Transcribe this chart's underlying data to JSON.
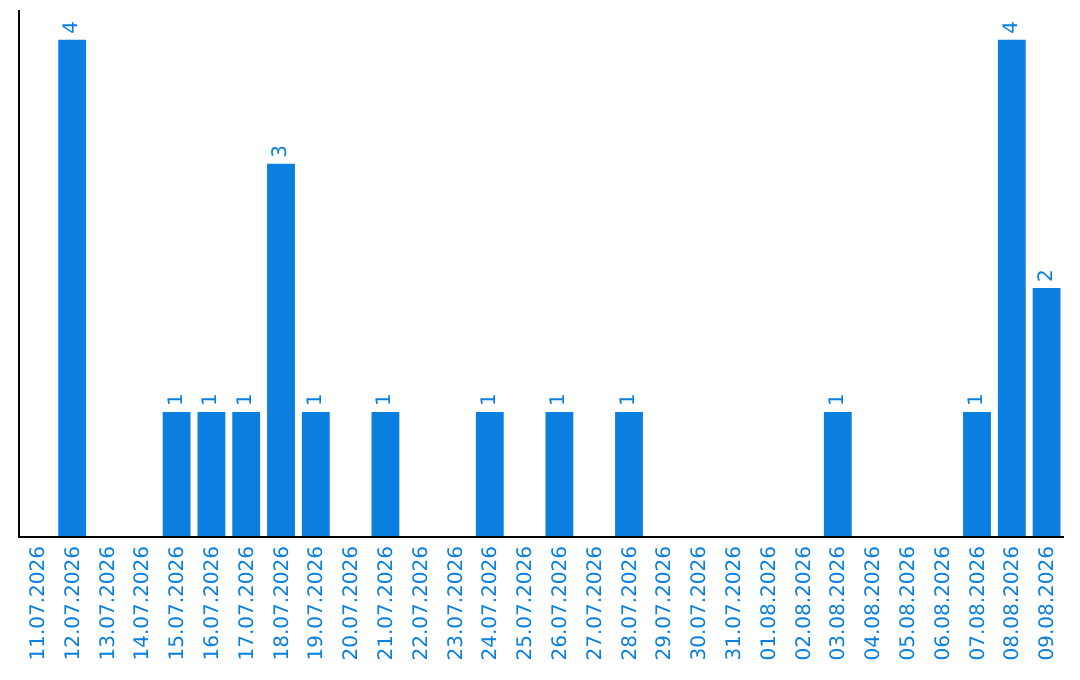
{
  "chart_data": {
    "type": "bar",
    "categories": [
      "11.07.2026",
      "12.07.2026",
      "13.07.2026",
      "14.07.2026",
      "15.07.2026",
      "16.07.2026",
      "17.07.2026",
      "18.07.2026",
      "19.07.2026",
      "20.07.2026",
      "21.07.2026",
      "22.07.2026",
      "23.07.2026",
      "24.07.2026",
      "25.07.2026",
      "26.07.2026",
      "27.07.2026",
      "28.07.2026",
      "29.07.2026",
      "30.07.2026",
      "31.07.2026",
      "01.08.2026",
      "02.08.2026",
      "03.08.2026",
      "04.08.2026",
      "05.08.2026",
      "06.08.2026",
      "07.08.2026",
      "08.08.2026",
      "09.08.2026"
    ],
    "values": [
      0,
      4,
      0,
      0,
      1,
      1,
      1,
      3,
      1,
      0,
      1,
      0,
      0,
      1,
      0,
      1,
      0,
      1,
      0,
      0,
      0,
      0,
      0,
      1,
      0,
      0,
      0,
      1,
      4,
      2
    ],
    "value_labels": [
      null,
      "4",
      null,
      null,
      "1",
      "1",
      "1",
      "3",
      "1",
      null,
      "1",
      null,
      null,
      "1",
      null,
      "1",
      null,
      "1",
      null,
      null,
      null,
      null,
      null,
      "1",
      null,
      null,
      null,
      "1",
      "4",
      "2"
    ],
    "color": "#0a7fe0",
    "tick_labels": "x",
    "legend": false
  }
}
